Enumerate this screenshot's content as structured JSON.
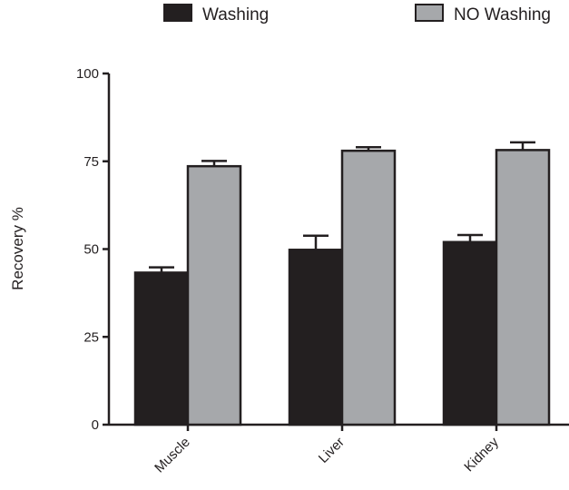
{
  "chart_data": {
    "type": "bar",
    "title": "",
    "xlabel": "",
    "ylabel": "Recovery %",
    "categories": [
      "Muscle",
      "Liver",
      "Kidney"
    ],
    "series": [
      {
        "name": "Washing",
        "values": [
          43.3,
          49.8,
          52.0
        ],
        "errors": [
          1.5,
          4.0,
          2.0
        ],
        "color": "#231f20"
      },
      {
        "name": "NO Washing",
        "values": [
          73.6,
          78.0,
          78.2
        ],
        "errors": [
          1.5,
          1.0,
          2.2
        ],
        "color": "#a6a8ab"
      }
    ],
    "ylim": [
      0,
      100
    ],
    "yticks": [
      0,
      25,
      50,
      75,
      100
    ],
    "grid": false,
    "legend_position": "top"
  },
  "colors": {
    "axis": "#231f20",
    "washing_fill": "#231f20",
    "no_washing_fill": "#a6a8ab"
  }
}
